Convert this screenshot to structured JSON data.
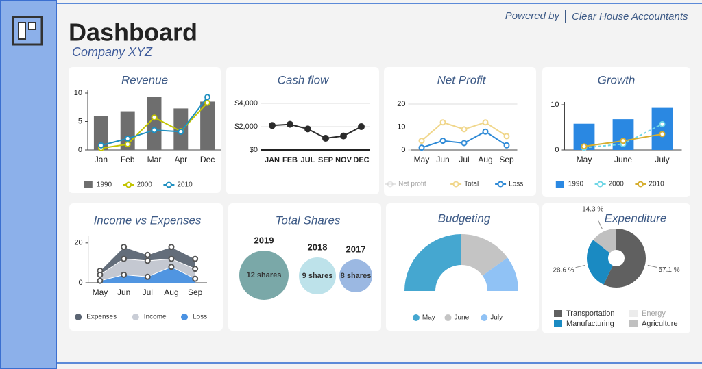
{
  "header": {
    "title": "Dashboard",
    "subtitle": "Company XYZ",
    "powered_by": "Powered by",
    "brand": "Clear House Accountants"
  },
  "chart_data": [
    {
      "type": "bar",
      "title": "Revenue",
      "categories": [
        "Jan",
        "Feb",
        "Mar",
        "Apr",
        "Dec"
      ],
      "series": [
        {
          "name": "1990",
          "type": "bar",
          "color": "#6e6e6e",
          "values": [
            6,
            6.8,
            9.3,
            7.3,
            8.5
          ]
        },
        {
          "name": "2000",
          "type": "line",
          "color": "#c2c400",
          "values": [
            0.3,
            1,
            5.7,
            3.3,
            8.3
          ]
        },
        {
          "name": "2010",
          "type": "line",
          "color": "#1e8fc0",
          "values": [
            0.8,
            2,
            3.5,
            3.2,
            9.3
          ]
        }
      ],
      "ylim": [
        0,
        10
      ],
      "yticks": [
        0,
        5,
        10
      ],
      "grid": false
    },
    {
      "type": "line",
      "title": "Cash flow",
      "categories": [
        "JAN",
        "FEB",
        "JUL",
        "SEP",
        "NOV",
        "DEC"
      ],
      "values": [
        2100,
        2200,
        1800,
        1000,
        1200,
        2000
      ],
      "color": "#2b2b2b",
      "ylim": [
        0,
        4000
      ],
      "yticks": [
        {
          "value": 0,
          "label": "$0"
        },
        {
          "value": 2000,
          "label": "$2,000"
        },
        {
          "value": 4000,
          "label": "$4,000"
        }
      ],
      "grid": true
    },
    {
      "type": "line",
      "title": "Net Profit",
      "categories": [
        "May",
        "Jun",
        "Jul",
        "Aug",
        "Sep"
      ],
      "series": [
        {
          "name": "Net profit",
          "color": "#c8c8c8",
          "visible": false,
          "values": [
            null,
            null,
            null,
            null,
            null
          ]
        },
        {
          "name": "Total",
          "color": "#f0d68a",
          "values": [
            4,
            12,
            9,
            12,
            6
          ]
        },
        {
          "name": "Loss",
          "color": "#2f8ad6",
          "values": [
            1,
            4,
            3,
            8,
            2
          ]
        }
      ],
      "ylim": [
        0,
        20
      ],
      "yticks": [
        0,
        10,
        20
      ],
      "grid": true
    },
    {
      "type": "bar",
      "title": "Growth",
      "categories": [
        "May",
        "June",
        "July"
      ],
      "series": [
        {
          "name": "1990",
          "type": "bar",
          "color": "#2a88e2",
          "values": [
            5.8,
            6.8,
            9.3
          ]
        },
        {
          "name": "2000",
          "type": "line",
          "color": "#6fd6e6",
          "dashed": true,
          "values": [
            0.5,
            1.3,
            5.7
          ]
        },
        {
          "name": "2010",
          "type": "line",
          "color": "#d6ae30",
          "values": [
            0.8,
            2,
            3.5
          ]
        }
      ],
      "ylim": [
        0,
        10
      ],
      "yticks": [
        0,
        10
      ],
      "grid": false
    },
    {
      "type": "area",
      "title": "Income vs Expenses",
      "categories": [
        "May",
        "Jun",
        "Jul",
        "Aug",
        "Sep"
      ],
      "series": [
        {
          "name": "Expenses",
          "color": "#5b6573",
          "values": [
            6,
            18,
            14,
            18,
            12
          ]
        },
        {
          "name": "Income",
          "color": "#c9cdd6",
          "values": [
            4,
            12,
            11,
            12,
            7
          ]
        },
        {
          "name": "Loss",
          "color": "#4a92e2",
          "values": [
            1,
            4,
            3,
            8,
            2
          ]
        }
      ],
      "ylim": [
        0,
        22
      ],
      "yticks": [
        0,
        20
      ],
      "grid": false
    },
    {
      "type": "bubble",
      "title": "Total Shares",
      "categories": [
        "2019",
        "2018",
        "2017"
      ],
      "values": [
        12,
        9,
        8
      ],
      "value_labels": [
        "12 shares",
        "9 shares",
        "8 shares"
      ],
      "colors": [
        "#7aa8a8",
        "#bde2ea",
        "#9bb8e2"
      ]
    },
    {
      "type": "pie",
      "title": "Budgeting",
      "half": true,
      "categories": [
        "May",
        "June",
        "July"
      ],
      "values": [
        50,
        30,
        20
      ],
      "colors": [
        "#45a7d0",
        "#c4c4c4",
        "#90c2f5"
      ]
    },
    {
      "type": "pie",
      "title": "Expenditure",
      "half": false,
      "categories": [
        "Transportation",
        "Energy",
        "Manufacturing",
        "Agriculture"
      ],
      "values": [
        57.1,
        null,
        28.6,
        14.3
      ],
      "value_labels": [
        "57.1 %",
        null,
        "28.6 %",
        "14.3 %"
      ],
      "colors": [
        "#606060",
        "#d4d4d4",
        "#1a8ac2",
        "#c0c0c0"
      ],
      "visible": [
        true,
        false,
        true,
        true
      ]
    }
  ]
}
